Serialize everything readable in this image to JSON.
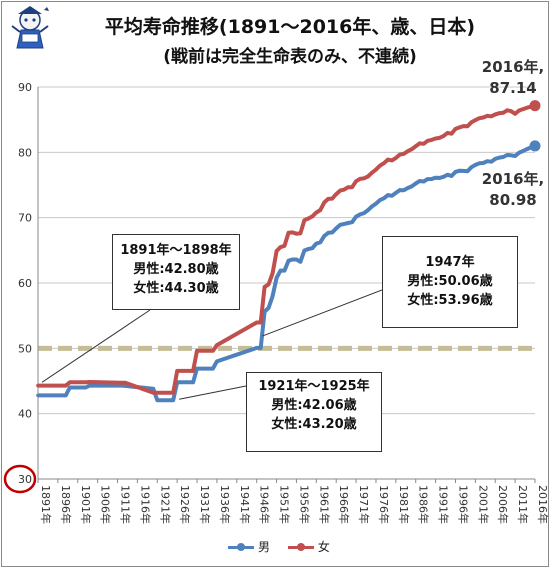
{
  "title": "平均寿命推移(1891～2016年、歳、日本)",
  "subtitle": "(戦前は完全生命表のみ、不連続)",
  "colors": {
    "male": "#4f81bd",
    "female": "#c0504d",
    "ref_line": "#c4bd97",
    "circle": "#c00000"
  },
  "callouts": {
    "early": {
      "line1": "1891年～1898年",
      "line2": "男性:42.80歳",
      "line3": "女性:44.30歳"
    },
    "postwar": {
      "line1": "1947年",
      "line2": "男性:50.06歳",
      "line3": "女性:53.96歳"
    },
    "taisho": {
      "line1": "1921年～1925年",
      "line2": "男性:42.06歳",
      "line3": "女性:43.20歳"
    }
  },
  "end_labels": {
    "female_year": "2016年,",
    "female_value": "87.14",
    "male_year": "2016年,",
    "male_value": "80.98"
  },
  "legend": {
    "male": "男",
    "female": "女"
  },
  "chart_data": {
    "type": "line",
    "ylim": [
      30,
      90
    ],
    "yticks": [
      "30",
      "40",
      "50",
      "60",
      "70",
      "80",
      "90"
    ],
    "xlim": [
      1891,
      2016
    ],
    "xticks": [
      "1891年",
      "1896年",
      "1901年",
      "1906年",
      "1911年",
      "1916年",
      "1921年",
      "1926年",
      "1931年",
      "1936年",
      "1941年",
      "1946年",
      "1951年",
      "1956年",
      "1961年",
      "1966年",
      "1971年",
      "1976年",
      "1981年",
      "1986年",
      "1991年",
      "1996年",
      "2001年",
      "2006年",
      "2011年",
      "2016年"
    ],
    "reference_line": 50,
    "grid": "horizontal",
    "legend_position": "bottom",
    "series": [
      {
        "name": "男",
        "points": [
          [
            1891,
            42.8
          ],
          [
            1898,
            42.8
          ],
          [
            1899,
            44.0
          ],
          [
            1903,
            44.0
          ],
          [
            1904,
            44.3
          ],
          [
            1912,
            44.3
          ],
          [
            1913,
            44.25
          ],
          [
            1920,
            43.8
          ],
          [
            1921,
            42.06
          ],
          [
            1925,
            42.06
          ],
          [
            1926,
            44.8
          ],
          [
            1930,
            44.8
          ],
          [
            1931,
            46.9
          ],
          [
            1935,
            46.9
          ],
          [
            1936,
            48.0
          ],
          [
            1946,
            50.06
          ],
          [
            1947,
            50.06
          ],
          [
            1948,
            55.6
          ],
          [
            1949,
            56.2
          ],
          [
            1950,
            58.0
          ],
          [
            1951,
            60.8
          ],
          [
            1952,
            61.9
          ],
          [
            1953,
            61.9
          ],
          [
            1954,
            63.41
          ],
          [
            1955,
            63.6
          ],
          [
            1956,
            63.59
          ],
          [
            1957,
            63.24
          ],
          [
            1958,
            64.98
          ],
          [
            1959,
            65.21
          ],
          [
            1960,
            65.32
          ],
          [
            1961,
            66.03
          ],
          [
            1962,
            66.23
          ],
          [
            1963,
            67.21
          ],
          [
            1964,
            67.67
          ],
          [
            1965,
            67.74
          ],
          [
            1966,
            68.35
          ],
          [
            1967,
            68.91
          ],
          [
            1968,
            69.05
          ],
          [
            1969,
            69.18
          ],
          [
            1970,
            69.31
          ],
          [
            1971,
            70.17
          ],
          [
            1972,
            70.5
          ],
          [
            1973,
            70.7
          ],
          [
            1974,
            71.16
          ],
          [
            1975,
            71.73
          ],
          [
            1976,
            72.15
          ],
          [
            1977,
            72.69
          ],
          [
            1978,
            72.97
          ],
          [
            1979,
            73.46
          ],
          [
            1980,
            73.35
          ],
          [
            1981,
            73.79
          ],
          [
            1982,
            74.22
          ],
          [
            1983,
            74.2
          ],
          [
            1984,
            74.54
          ],
          [
            1985,
            74.78
          ],
          [
            1986,
            75.23
          ],
          [
            1987,
            75.61
          ],
          [
            1988,
            75.54
          ],
          [
            1989,
            75.91
          ],
          [
            1990,
            75.92
          ],
          [
            1991,
            76.11
          ],
          [
            1992,
            76.09
          ],
          [
            1993,
            76.25
          ],
          [
            1994,
            76.57
          ],
          [
            1995,
            76.38
          ],
          [
            1996,
            77.01
          ],
          [
            1997,
            77.19
          ],
          [
            1998,
            77.16
          ],
          [
            1999,
            77.1
          ],
          [
            2000,
            77.72
          ],
          [
            2001,
            78.07
          ],
          [
            2002,
            78.32
          ],
          [
            2003,
            78.36
          ],
          [
            2004,
            78.64
          ],
          [
            2005,
            78.56
          ],
          [
            2006,
            79.0
          ],
          [
            2007,
            79.19
          ],
          [
            2008,
            79.29
          ],
          [
            2009,
            79.59
          ],
          [
            2010,
            79.55
          ],
          [
            2011,
            79.44
          ],
          [
            2012,
            79.94
          ],
          [
            2013,
            80.21
          ],
          [
            2014,
            80.5
          ],
          [
            2015,
            80.75
          ],
          [
            2016,
            80.98
          ]
        ]
      },
      {
        "name": "女",
        "points": [
          [
            1891,
            44.3
          ],
          [
            1898,
            44.3
          ],
          [
            1899,
            44.8
          ],
          [
            1903,
            44.8
          ],
          [
            1904,
            44.85
          ],
          [
            1912,
            44.73
          ],
          [
            1913,
            44.73
          ],
          [
            1920,
            43.2
          ],
          [
            1921,
            43.2
          ],
          [
            1925,
            43.2
          ],
          [
            1926,
            46.54
          ],
          [
            1930,
            46.54
          ],
          [
            1931,
            49.63
          ],
          [
            1935,
            49.63
          ],
          [
            1936,
            50.5
          ],
          [
            1946,
            53.96
          ],
          [
            1947,
            53.96
          ],
          [
            1948,
            59.4
          ],
          [
            1949,
            59.8
          ],
          [
            1950,
            61.5
          ],
          [
            1951,
            64.9
          ],
          [
            1952,
            65.5
          ],
          [
            1953,
            65.7
          ],
          [
            1954,
            67.69
          ],
          [
            1955,
            67.75
          ],
          [
            1956,
            67.54
          ],
          [
            1957,
            67.6
          ],
          [
            1958,
            69.61
          ],
          [
            1959,
            69.88
          ],
          [
            1960,
            70.19
          ],
          [
            1961,
            70.79
          ],
          [
            1962,
            71.16
          ],
          [
            1963,
            72.34
          ],
          [
            1964,
            72.87
          ],
          [
            1965,
            72.92
          ],
          [
            1966,
            73.61
          ],
          [
            1967,
            74.15
          ],
          [
            1968,
            74.3
          ],
          [
            1969,
            74.67
          ],
          [
            1970,
            74.66
          ],
          [
            1971,
            75.58
          ],
          [
            1972,
            75.94
          ],
          [
            1973,
            76.02
          ],
          [
            1974,
            76.31
          ],
          [
            1975,
            76.89
          ],
          [
            1976,
            77.35
          ],
          [
            1977,
            77.95
          ],
          [
            1978,
            78.33
          ],
          [
            1979,
            78.89
          ],
          [
            1980,
            78.76
          ],
          [
            1981,
            79.13
          ],
          [
            1982,
            79.66
          ],
          [
            1983,
            79.78
          ],
          [
            1984,
            80.18
          ],
          [
            1985,
            80.48
          ],
          [
            1986,
            80.93
          ],
          [
            1987,
            81.39
          ],
          [
            1988,
            81.3
          ],
          [
            1989,
            81.77
          ],
          [
            1990,
            81.9
          ],
          [
            1991,
            82.11
          ],
          [
            1992,
            82.22
          ],
          [
            1993,
            82.51
          ],
          [
            1994,
            82.98
          ],
          [
            1995,
            82.85
          ],
          [
            1996,
            83.59
          ],
          [
            1997,
            83.82
          ],
          [
            1998,
            84.01
          ],
          [
            1999,
            83.99
          ],
          [
            2000,
            84.6
          ],
          [
            2001,
            84.93
          ],
          [
            2002,
            85.23
          ],
          [
            2003,
            85.33
          ],
          [
            2004,
            85.59
          ],
          [
            2005,
            85.52
          ],
          [
            2006,
            85.81
          ],
          [
            2007,
            85.99
          ],
          [
            2008,
            86.05
          ],
          [
            2009,
            86.44
          ],
          [
            2010,
            86.3
          ],
          [
            2011,
            85.9
          ],
          [
            2012,
            86.41
          ],
          [
            2013,
            86.61
          ],
          [
            2014,
            86.83
          ],
          [
            2015,
            86.99
          ],
          [
            2016,
            87.14
          ]
        ]
      }
    ]
  }
}
